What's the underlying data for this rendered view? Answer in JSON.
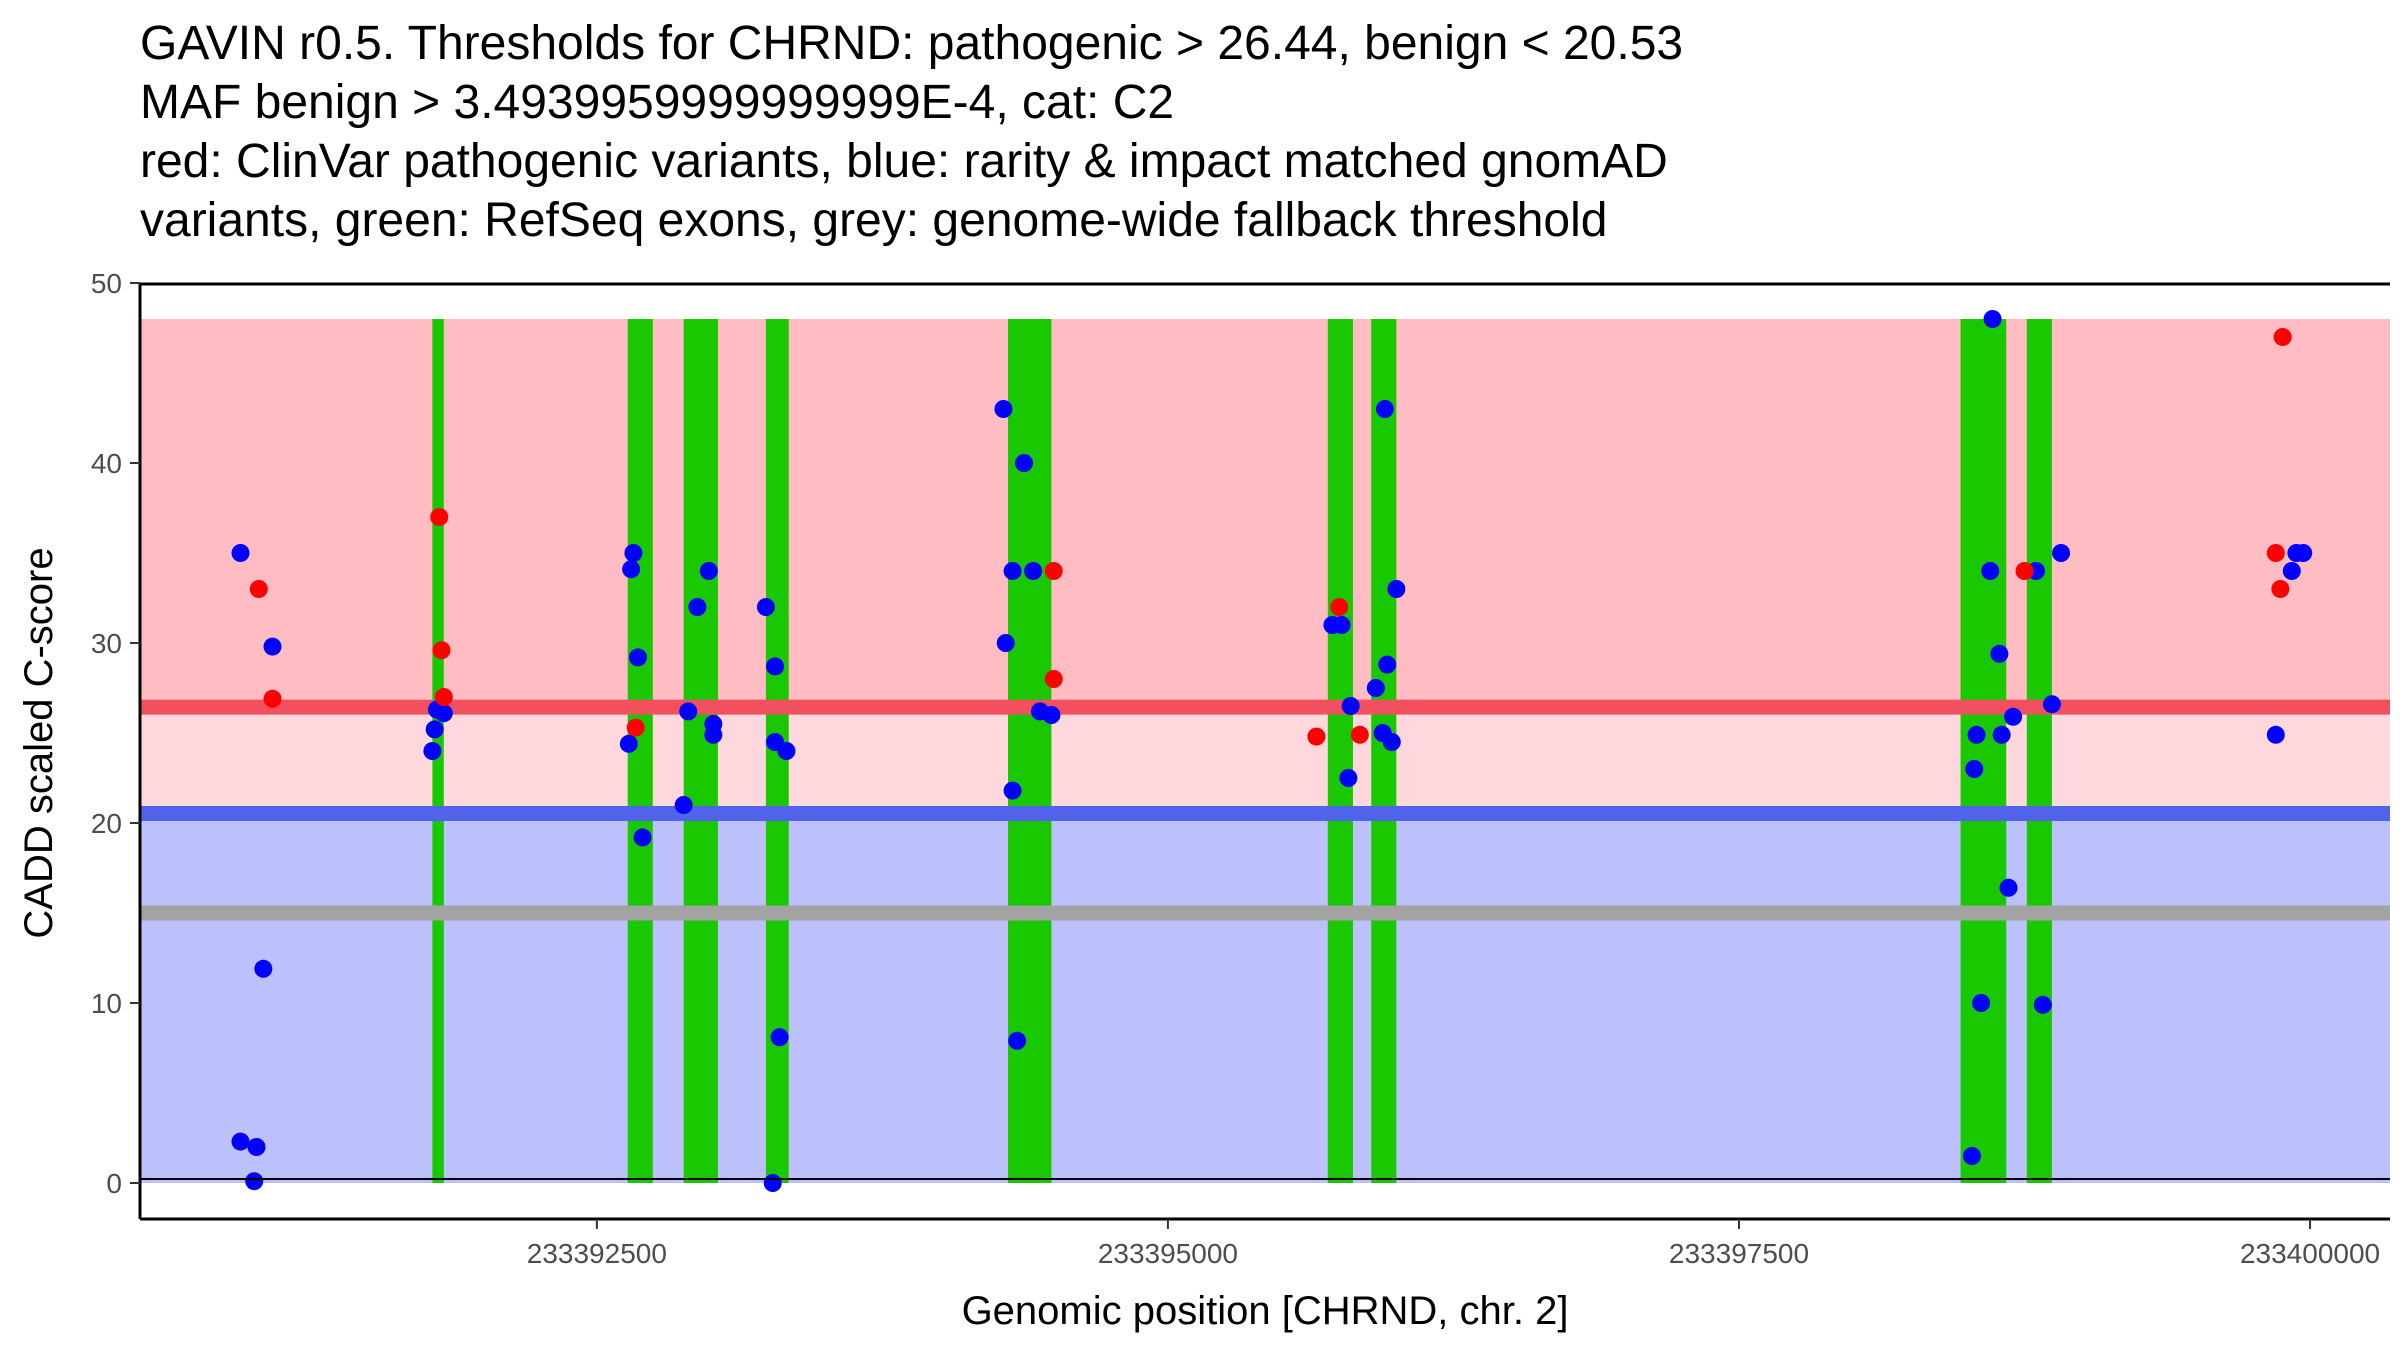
{
  "chart_data": {
    "type": "scatter",
    "title_lines": [
      "GAVIN r0.5. Thresholds for CHRND: pathogenic > 26.44, benign < 20.53",
      "MAF benign > 3.4939959999999999E-4, cat: C2",
      "red: ClinVar pathogenic variants, blue: rarity & impact matched gnomAD",
      "variants, green: RefSeq exons, grey: genome-wide fallback threshold"
    ],
    "xlabel": "Genomic position [CHRND, chr. 2]",
    "ylabel": "CADD scaled C-score",
    "xlim": [
      233390500,
      233400350
    ],
    "ylim": [
      -2,
      50
    ],
    "x_ticks": [
      233392500,
      233395000,
      233397500,
      233400000
    ],
    "x_tick_labels": [
      "233392500",
      "233395000",
      "233397500",
      "233400000"
    ],
    "y_ticks": [
      0,
      10,
      20,
      30,
      40,
      50
    ],
    "y_tick_labels": [
      "0",
      "10",
      "20",
      "30",
      "40",
      "50"
    ],
    "thresholds": {
      "pathogenic": 26.44,
      "benign": 20.53,
      "genome_wide_fallback": 15
    },
    "regions": {
      "pathogenic_zone": [
        26.44,
        48
      ],
      "uncertain_zone": [
        20.53,
        26.44
      ],
      "benign_zone": [
        0,
        20.53
      ]
    },
    "colors": {
      "pathogenic_zone": "#ffbcc3",
      "uncertain_zone": "#ffd8de",
      "benign_zone": "#bcc1fb",
      "pathogenic_line": "#f1515e",
      "benign_line": "#5163ea",
      "fallback_line": "#a3a3a3",
      "exon": "#1ac800",
      "clinvar_point": "#ff0000",
      "gnomad_point": "#0000ff"
    },
    "exons": [
      [
        233391780,
        233391830
      ],
      [
        233392635,
        233392745
      ],
      [
        233392880,
        233393030
      ],
      [
        233393240,
        233393340
      ],
      [
        233394300,
        233394490
      ],
      [
        233395700,
        233395810
      ],
      [
        233395890,
        233396000
      ],
      [
        233398470,
        233398670
      ],
      [
        233398760,
        233398870
      ]
    ],
    "series": [
      {
        "name": "ClinVar pathogenic variants",
        "color": "#ff0000",
        "points": [
          [
            233391020,
            33
          ],
          [
            233391080,
            26.9
          ],
          [
            233391810,
            37
          ],
          [
            233391820,
            29.6
          ],
          [
            233391830,
            27
          ],
          [
            233392670,
            25.3
          ],
          [
            233394500,
            34
          ],
          [
            233394500,
            28
          ],
          [
            233395650,
            24.8
          ],
          [
            233395750,
            32
          ],
          [
            233395840,
            24.9
          ],
          [
            233398750,
            34
          ],
          [
            233399850,
            35
          ],
          [
            233399870,
            33
          ],
          [
            233399880,
            47
          ]
        ]
      },
      {
        "name": "rarity & impact matched gnomAD variants",
        "color": "#0000ff",
        "points": [
          [
            233390940,
            35
          ],
          [
            233390940,
            2.3
          ],
          [
            233391000,
            0.1
          ],
          [
            233391010,
            2
          ],
          [
            233391040,
            11.9
          ],
          [
            233391080,
            29.8
          ],
          [
            233391780,
            24
          ],
          [
            233391790,
            25.2
          ],
          [
            233391800,
            26.3
          ],
          [
            233391830,
            26.1
          ],
          [
            233392640,
            24.4
          ],
          [
            233392650,
            34.1
          ],
          [
            233392660,
            35
          ],
          [
            233392680,
            29.2
          ],
          [
            233392700,
            19.2
          ],
          [
            233392880,
            21
          ],
          [
            233392900,
            26.2
          ],
          [
            233392940,
            32
          ],
          [
            233392990,
            34
          ],
          [
            233393010,
            25.5
          ],
          [
            233393010,
            24.9
          ],
          [
            233393240,
            32
          ],
          [
            233393280,
            28.7
          ],
          [
            233393280,
            24.5
          ],
          [
            233393300,
            8.1
          ],
          [
            233393270,
            0
          ],
          [
            233393330,
            24
          ],
          [
            233394280,
            43
          ],
          [
            233394290,
            30
          ],
          [
            233394320,
            21.8
          ],
          [
            233394320,
            34
          ],
          [
            233394340,
            7.9
          ],
          [
            233394370,
            40
          ],
          [
            233394410,
            34
          ],
          [
            233394440,
            26.2
          ],
          [
            233394490,
            26
          ],
          [
            233395720,
            31
          ],
          [
            233395760,
            31
          ],
          [
            233395800,
            26.5
          ],
          [
            233395790,
            22.5
          ],
          [
            233395910,
            27.5
          ],
          [
            233395940,
            25
          ],
          [
            233395950,
            43
          ],
          [
            233395960,
            28.8
          ],
          [
            233395980,
            24.5
          ],
          [
            233396000,
            33
          ],
          [
            233398520,
            1.5
          ],
          [
            233398530,
            23
          ],
          [
            233398540,
            24.9
          ],
          [
            233398560,
            10
          ],
          [
            233398600,
            34
          ],
          [
            233398610,
            48
          ],
          [
            233398640,
            29.4
          ],
          [
            233398650,
            24.9
          ],
          [
            233398680,
            16.4
          ],
          [
            233398700,
            25.9
          ],
          [
            233398800,
            34
          ],
          [
            233398830,
            9.9
          ],
          [
            233398870,
            26.6
          ],
          [
            233398910,
            35
          ],
          [
            233399850,
            24.9
          ],
          [
            233399920,
            34
          ],
          [
            233399940,
            35
          ],
          [
            233399970,
            35
          ]
        ]
      }
    ]
  }
}
